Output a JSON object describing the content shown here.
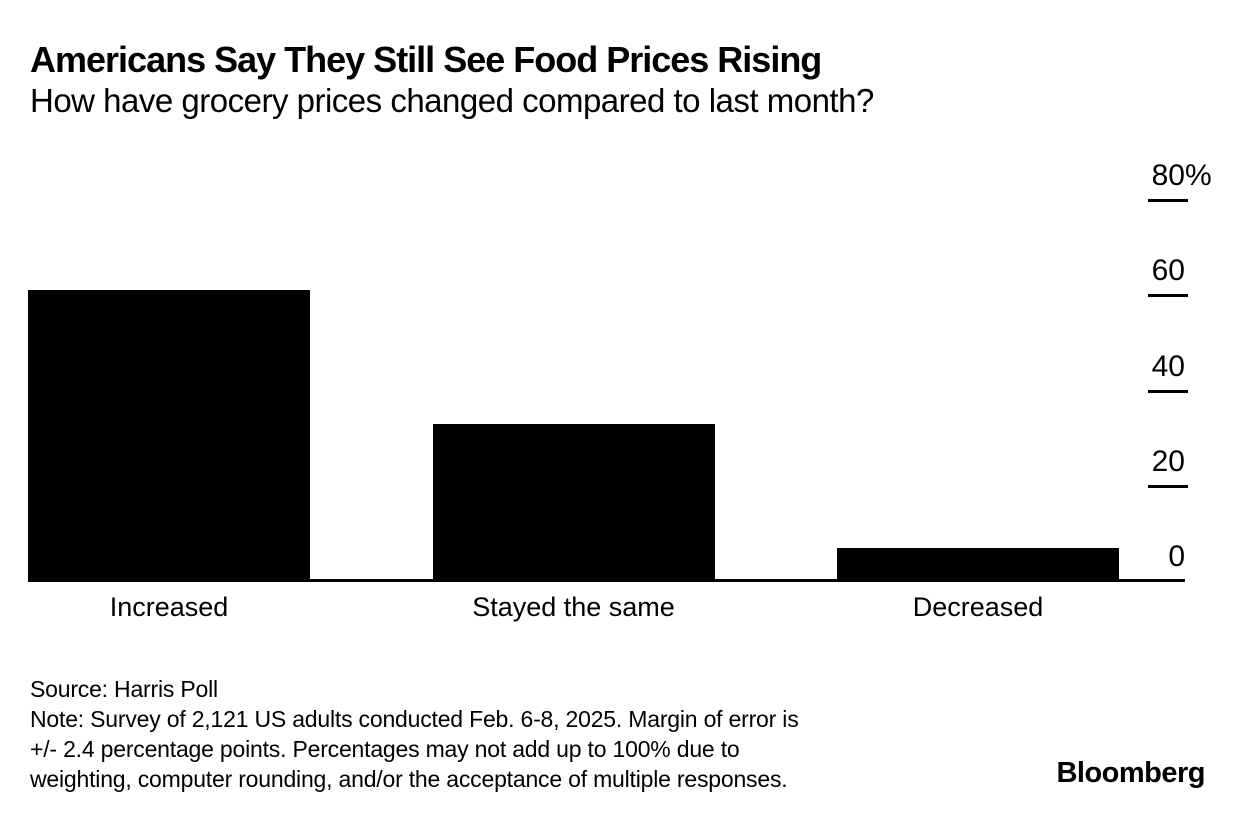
{
  "chart_data": {
    "type": "bar",
    "title": "Americans Say They Still See Food Prices Rising",
    "subtitle": "How have grocery prices changed compared to last month?",
    "categories": [
      "Increased",
      "Stayed the same",
      "Decreased"
    ],
    "values": [
      61,
      33,
      7
    ],
    "unit": "%",
    "ylim": [
      0,
      80
    ],
    "yticks": [
      {
        "value": 80,
        "label": "80",
        "suffix": "%"
      },
      {
        "value": 60,
        "label": "60",
        "suffix": ""
      },
      {
        "value": 40,
        "label": "40",
        "suffix": ""
      },
      {
        "value": 20,
        "label": "20",
        "suffix": ""
      },
      {
        "value": 0,
        "label": "0",
        "suffix": ""
      }
    ],
    "axis_side": "right",
    "grid": false,
    "bar_color": "#000000",
    "background_color": "#ffffff",
    "text_color": "#000000"
  },
  "footer": {
    "source": "Source: Harris Poll",
    "note_lines": [
      "Note: Survey of 2,121 US adults conducted Feb. 6-8, 2025. Margin of error is",
      "+/- 2.4 percentage points. Percentages may not add up to 100% due to",
      "weighting, computer rounding, and/or the acceptance of multiple responses."
    ]
  },
  "branding": {
    "logo": "Bloomberg"
  }
}
